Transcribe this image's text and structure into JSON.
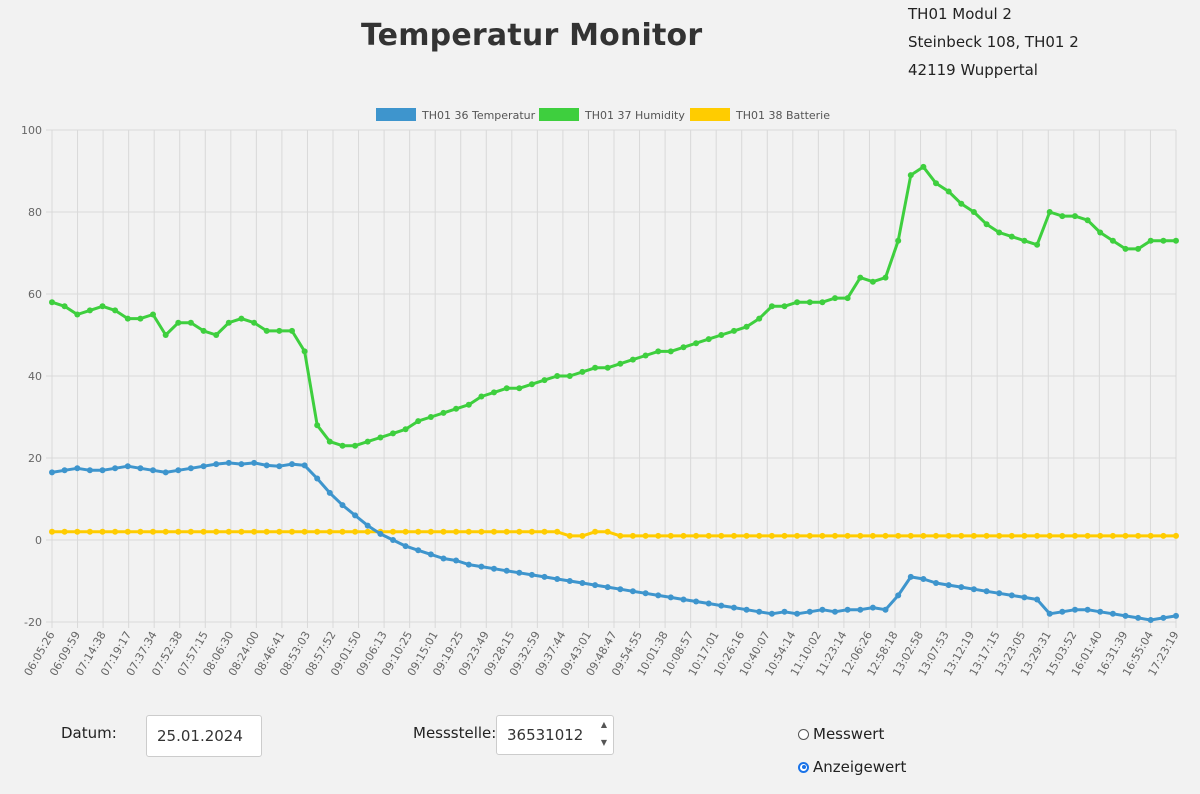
{
  "header": {
    "title": "Temperatur Monitor",
    "address": [
      "TH01 Modul 2",
      "Steinbeck 108, TH01 2",
      "42119 Wuppertal"
    ]
  },
  "colors": {
    "temperature": "#3e95cd",
    "humidity": "#3ecf3e",
    "battery": "#ffcc00",
    "grid": "#d9d9d9",
    "axis_text": "#666666"
  },
  "chart_data": {
    "type": "line",
    "title": "",
    "xlabel": "",
    "ylabel": "",
    "ylim": [
      -20,
      100
    ],
    "yticks": [
      -20,
      0,
      20,
      40,
      60,
      80,
      100
    ],
    "grid": true,
    "legend_position": "top-center",
    "x_tick_labels": [
      "06:05:26",
      "06:09:59",
      "07:14:38",
      "07:19:17",
      "07:37:34",
      "07:52:38",
      "07:57:15",
      "08:06:30",
      "08:24:00",
      "08:46:41",
      "08:53:03",
      "08:57:52",
      "09:01:50",
      "09:06:13",
      "09:10:25",
      "09:15:01",
      "09:19:25",
      "09:23:49",
      "09:28:15",
      "09:32:59",
      "09:37:44",
      "09:43:01",
      "09:48:47",
      "09:54:55",
      "10:01:38",
      "10:08:57",
      "10:17:01",
      "10:26:16",
      "10:40:07",
      "10:54:14",
      "11:10:02",
      "11:23:14",
      "12:06:26",
      "12:58:18",
      "13:02:58",
      "13:07:53",
      "13:12:19",
      "13:17:15",
      "13:23:05",
      "13:29:31",
      "15:03:52",
      "16:01:40",
      "16:31:39",
      "16:55:04",
      "17:23:19"
    ],
    "series": [
      {
        "name": "TH01 36 Temperatur",
        "values": [
          16.5,
          17.0,
          17.5,
          17.0,
          17.0,
          17.5,
          18.0,
          17.5,
          17.0,
          16.5,
          17.0,
          17.5,
          18.0,
          18.5,
          18.8,
          18.5,
          18.8,
          18.2,
          18.0,
          18.5,
          18.2,
          15.0,
          11.5,
          8.5,
          6.0,
          3.5,
          1.5,
          0.0,
          -1.5,
          -2.5,
          -3.5,
          -4.5,
          -5.0,
          -6.0,
          -6.5,
          -7.0,
          -7.5,
          -8.0,
          -8.5,
          -9.0,
          -9.5,
          -10.0,
          -10.5,
          -11.0,
          -11.5,
          -12.0,
          -12.5,
          -13.0,
          -13.5,
          -14.0,
          -14.5,
          -15.0,
          -15.5,
          -16.0,
          -16.5,
          -17.0,
          -17.5,
          -18.0,
          -17.5,
          -18.0,
          -17.5,
          -17.0,
          -17.5,
          -17.0,
          -17.0,
          -16.5,
          -17.0,
          -13.5,
          -9.0,
          -9.5,
          -10.5,
          -11.0,
          -11.5,
          -12.0,
          -12.5,
          -13.0,
          -13.5,
          -14.0,
          -14.5,
          -18.0,
          -17.5,
          -17.0,
          -17.0,
          -17.5,
          -18.0,
          -18.5,
          -19.0,
          -19.5,
          -19.0,
          -18.5
        ]
      },
      {
        "name": "TH01 37 Humidity",
        "values": [
          58,
          57,
          55,
          56,
          57,
          56,
          54,
          54,
          55,
          50,
          53,
          53,
          51,
          50,
          53,
          54,
          53,
          51,
          51,
          51,
          46,
          28,
          24,
          23,
          23,
          24,
          25,
          26,
          27,
          29,
          30,
          31,
          32,
          33,
          35,
          36,
          37,
          37,
          38,
          39,
          40,
          40,
          41,
          42,
          42,
          43,
          44,
          45,
          46,
          46,
          47,
          48,
          49,
          50,
          51,
          52,
          54,
          57,
          57,
          58,
          58,
          58,
          59,
          59,
          64,
          63,
          64,
          73,
          89,
          91,
          87,
          85,
          82,
          80,
          77,
          75,
          74,
          73,
          72,
          80,
          79,
          79,
          78,
          75,
          73,
          71,
          71,
          73,
          73,
          73
        ]
      },
      {
        "name": "TH01 38 Batterie",
        "values": [
          2,
          2,
          2,
          2,
          2,
          2,
          2,
          2,
          2,
          2,
          2,
          2,
          2,
          2,
          2,
          2,
          2,
          2,
          2,
          2,
          2,
          2,
          2,
          2,
          2,
          2,
          2,
          2,
          2,
          2,
          2,
          2,
          2,
          2,
          2,
          2,
          2,
          2,
          2,
          2,
          2,
          1,
          1,
          2,
          2,
          1,
          1,
          1,
          1,
          1,
          1,
          1,
          1,
          1,
          1,
          1,
          1,
          1,
          1,
          1,
          1,
          1,
          1,
          1,
          1,
          1,
          1,
          1,
          1,
          1,
          1,
          1,
          1,
          1,
          1,
          1,
          1,
          1,
          1,
          1,
          1,
          1,
          1,
          1,
          1,
          1,
          1,
          1,
          1,
          1
        ]
      }
    ]
  },
  "form": {
    "date_label": "Datum:",
    "date_value": "25.01.2024",
    "station_label": "Messstelle:",
    "station_value": "36531012",
    "stepper_up": "▲",
    "stepper_down": "▼",
    "radio_options": [
      {
        "label": "Messwert",
        "checked": false
      },
      {
        "label": "Anzeigewert",
        "checked": true
      }
    ]
  }
}
